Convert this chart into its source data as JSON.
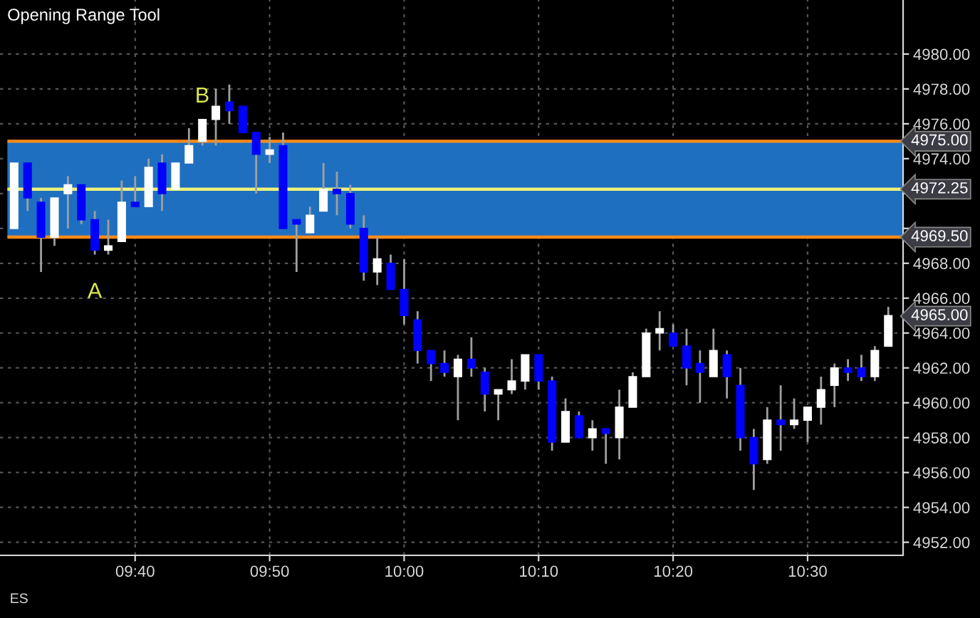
{
  "chart_data": {
    "type": "candlestick",
    "title": "Opening Range Tool",
    "categories": [
      null,
      null,
      null,
      null,
      null,
      null,
      null,
      null,
      null,
      "09:40",
      null,
      null,
      null,
      null,
      null,
      null,
      null,
      null,
      null,
      "09:50",
      null,
      null,
      null,
      null,
      null,
      null,
      null,
      null,
      null,
      "10:00",
      null,
      null,
      null,
      null,
      null,
      null,
      null,
      null,
      null,
      "10:10",
      null,
      null,
      null,
      null,
      null,
      null,
      null,
      null,
      null,
      "10:20",
      null,
      null,
      null,
      null,
      null,
      null,
      null,
      null,
      null,
      "10:30",
      null,
      null,
      null,
      null,
      null,
      null
    ],
    "ohlc": [
      [
        4970.0,
        4973.75,
        4970.0,
        4973.75
      ],
      [
        4973.75,
        4973.75,
        4971.0,
        4971.75
      ],
      [
        4971.5,
        4971.75,
        4967.5,
        4969.5
      ],
      [
        4969.5,
        4971.75,
        4969.0,
        4971.75
      ],
      [
        4972.0,
        4973.0,
        4970.0,
        4972.5
      ],
      [
        4972.5,
        4972.5,
        4970.25,
        4970.5
      ],
      [
        4970.5,
        4971.0,
        4968.5,
        4968.75
      ],
      [
        4968.75,
        4970.5,
        4968.5,
        4969.0
      ],
      [
        4969.25,
        4972.75,
        4969.25,
        4971.5
      ],
      [
        4971.5,
        4973.0,
        4971.25,
        4971.25
      ],
      [
        4971.25,
        4974.0,
        4971.25,
        4973.5
      ],
      [
        4973.75,
        4974.25,
        4971.0,
        4972.0
      ],
      [
        4972.25,
        4973.75,
        4972.25,
        4973.75
      ],
      [
        4973.75,
        4975.75,
        4973.75,
        4974.75
      ],
      [
        4975.0,
        4976.25,
        4974.75,
        4976.25
      ],
      [
        4976.25,
        4978.0,
        4974.75,
        4977.0
      ],
      [
        4977.25,
        4978.25,
        4976.0,
        4976.75
      ],
      [
        4977.0,
        4977.0,
        4975.5,
        4975.5
      ],
      [
        4975.5,
        4975.5,
        4972.0,
        4974.25
      ],
      [
        4974.25,
        4975.25,
        4973.75,
        4974.5
      ],
      [
        4974.75,
        4975.5,
        4970.0,
        4970.0
      ],
      [
        4970.5,
        4970.5,
        4967.5,
        4970.25
      ],
      [
        4969.75,
        4971.25,
        4969.75,
        4970.75
      ],
      [
        4971.0,
        4973.75,
        4971.0,
        4972.25
      ],
      [
        4972.25,
        4973.25,
        4970.75,
        4972.0
      ],
      [
        4972.0,
        4972.5,
        4970.0,
        4970.25
      ],
      [
        4970.0,
        4970.75,
        4967.0,
        4967.5
      ],
      [
        4967.5,
        4969.5,
        4966.75,
        4968.25
      ],
      [
        4968.0,
        4968.5,
        4966.5,
        4966.5
      ],
      [
        4966.5,
        4968.25,
        4964.5,
        4965.0
      ],
      [
        4964.75,
        4965.25,
        4962.25,
        4963.0
      ],
      [
        4963.0,
        4963.0,
        4961.25,
        4962.25
      ],
      [
        4962.25,
        4963.0,
        4961.5,
        4961.75
      ],
      [
        4961.5,
        4962.75,
        4959.0,
        4962.5
      ],
      [
        4962.5,
        4963.75,
        4961.5,
        4962.0
      ],
      [
        4961.75,
        4962.0,
        4959.5,
        4960.5
      ],
      [
        4960.5,
        4960.75,
        4959.0,
        4960.75
      ],
      [
        4960.75,
        4962.5,
        4960.5,
        4961.25
      ],
      [
        4961.25,
        4962.75,
        4960.75,
        4962.75
      ],
      [
        4962.75,
        4962.75,
        4960.75,
        4961.25
      ],
      [
        4961.25,
        4961.5,
        4957.25,
        4957.75
      ],
      [
        4957.75,
        4960.25,
        4957.75,
        4959.5
      ],
      [
        4959.25,
        4959.5,
        4958.0,
        4958.0
      ],
      [
        4958.0,
        4959.0,
        4957.25,
        4958.5
      ],
      [
        4958.5,
        4958.5,
        4956.5,
        4958.25
      ],
      [
        4958.0,
        4960.75,
        4956.75,
        4959.75
      ],
      [
        4959.75,
        4961.75,
        4959.75,
        4961.5
      ],
      [
        4961.5,
        4964.25,
        4961.5,
        4964.0
      ],
      [
        4964.0,
        4965.25,
        4963.0,
        4964.25
      ],
      [
        4964.0,
        4964.5,
        4963.25,
        4963.25
      ],
      [
        4963.25,
        4964.25,
        4961.0,
        4962.0
      ],
      [
        4962.25,
        4963.0,
        4960.0,
        4961.75
      ],
      [
        4961.5,
        4964.25,
        4961.5,
        4963.0
      ],
      [
        4962.75,
        4963.0,
        4960.25,
        4961.5
      ],
      [
        4961.0,
        4962.0,
        4957.25,
        4958.0
      ],
      [
        4958.0,
        4958.5,
        4955.0,
        4956.5
      ],
      [
        4956.75,
        4959.75,
        4956.5,
        4959.0
      ],
      [
        4959.0,
        4961.0,
        4957.25,
        4958.75
      ],
      [
        4958.75,
        4960.25,
        4958.5,
        4959.0
      ],
      [
        4959.0,
        4959.75,
        4957.75,
        4959.75
      ],
      [
        4959.75,
        4961.5,
        4958.75,
        4960.75
      ],
      [
        4961.0,
        4962.25,
        4959.75,
        4962.0
      ],
      [
        4962.0,
        4962.5,
        4961.25,
        4961.75
      ],
      [
        4962.0,
        4962.75,
        4961.25,
        4961.5
      ],
      [
        4961.5,
        4963.25,
        4961.25,
        4963.0
      ],
      [
        4963.25,
        4965.5,
        4963.25,
        4965.0
      ]
    ],
    "ylim": [
      4951.25,
      4983.1
    ],
    "yticks": [
      {
        "value": 4952,
        "label": "4952.00"
      },
      {
        "value": 4954,
        "label": "4954.00"
      },
      {
        "value": 4956,
        "label": "4956.00"
      },
      {
        "value": 4958,
        "label": "4958.00"
      },
      {
        "value": 4960,
        "label": "4960.00"
      },
      {
        "value": 4962,
        "label": "4962.00"
      },
      {
        "value": 4964,
        "label": "4964.00"
      },
      {
        "value": 4966,
        "label": "4966.00"
      },
      {
        "value": 4968,
        "label": "4968.00"
      },
      {
        "value": 4970,
        "label": null
      },
      {
        "value": 4972,
        "label": null
      },
      {
        "value": 4974,
        "label": "4974.00"
      },
      {
        "value": 4976,
        "label": "4976.00"
      },
      {
        "value": 4978,
        "label": "4978.00"
      },
      {
        "value": 4980,
        "label": "4980.00"
      }
    ],
    "bands": [
      {
        "axis": "y",
        "from": 4969.5,
        "to": 4975.0,
        "color": "#1f6fc0"
      }
    ],
    "ref_lines": [
      {
        "axis": "y",
        "value": 4975.0,
        "label": "4975.00",
        "color": "#ff8c1a"
      },
      {
        "axis": "y",
        "value": 4972.25,
        "label": "4972.25",
        "color": "#eef27a"
      },
      {
        "axis": "y",
        "value": 4969.5,
        "label": "4969.50",
        "color": "#ff8c1a"
      }
    ],
    "annotations": [
      {
        "text": "A",
        "y": 4968.5
      },
      "B",
      "4965.00",
      "ES"
    ],
    "grid": true,
    "legend": false
  }
}
